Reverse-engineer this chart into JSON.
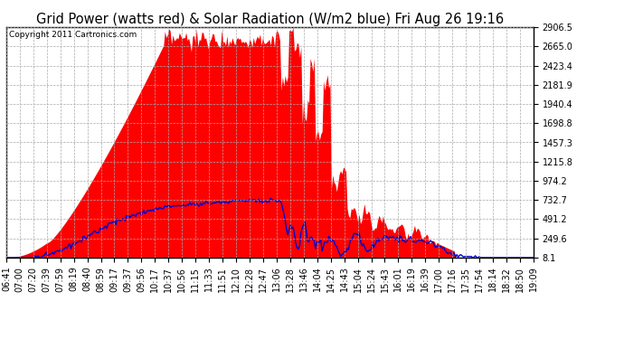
{
  "title": "Grid Power (watts red) & Solar Radiation (W/m2 blue) Fri Aug 26 19:16",
  "copyright_text": "Copyright 2011 Cartronics.com",
  "yticks": [
    8.1,
    249.6,
    491.2,
    732.7,
    974.2,
    1215.8,
    1457.3,
    1698.8,
    1940.4,
    2181.9,
    2423.4,
    2665.0,
    2906.5
  ],
  "ymin": 8.1,
  "ymax": 2906.5,
  "x_labels": [
    "06:41",
    "07:00",
    "07:20",
    "07:39",
    "07:59",
    "08:19",
    "08:40",
    "08:59",
    "09:17",
    "09:37",
    "09:56",
    "10:17",
    "10:37",
    "10:56",
    "11:15",
    "11:33",
    "11:51",
    "12:10",
    "12:28",
    "12:47",
    "13:06",
    "13:28",
    "13:46",
    "14:04",
    "14:25",
    "14:43",
    "15:04",
    "15:24",
    "15:43",
    "16:01",
    "16:19",
    "16:39",
    "17:00",
    "17:16",
    "17:35",
    "17:54",
    "18:14",
    "18:32",
    "18:50",
    "19:09"
  ],
  "bg_color": "#ffffff",
  "plot_bg_color": "#ffffff",
  "grid_color": "#aaaaaa",
  "red_fill_color": "#ff0000",
  "blue_line_color": "#0000cc",
  "title_fontsize": 10.5,
  "tick_fontsize": 7,
  "copyright_fontsize": 6.5
}
